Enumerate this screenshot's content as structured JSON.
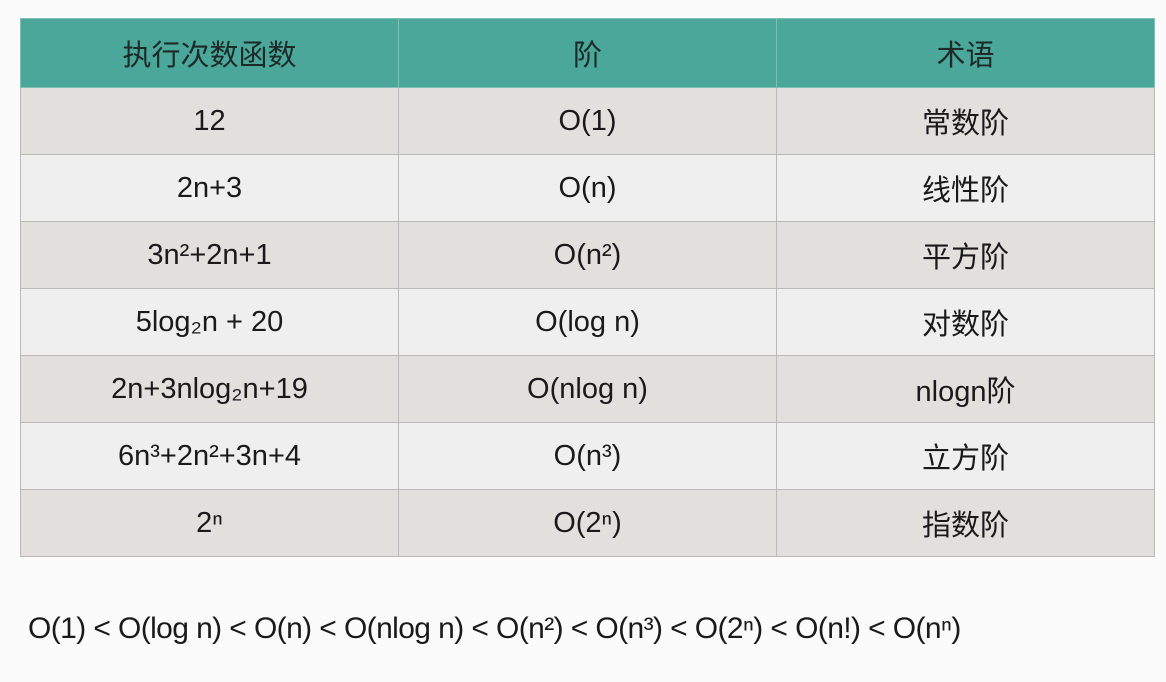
{
  "table": {
    "headers": [
      "执行次数函数",
      "阶",
      "术语"
    ],
    "rows": [
      [
        "12",
        "O(1)",
        "常数阶"
      ],
      [
        "2n+3",
        "O(n)",
        "线性阶"
      ],
      [
        "3n²+2n+1",
        "O(n²)",
        "平方阶"
      ],
      [
        "5log₂n + 20",
        "O(log n)",
        "对数阶"
      ],
      [
        "2n+3nlog₂n+19",
        "O(nlog n)",
        "nlogn阶"
      ],
      [
        "6n³+2n²+3n+4",
        "O(n³)",
        "立方阶"
      ],
      [
        "2ⁿ",
        "O(2ⁿ)",
        "指数阶"
      ]
    ],
    "colors": {
      "header_bg": "#4aa79a",
      "row_odd": "#e1e0dd",
      "row_even": "#efefef"
    }
  },
  "order_text": "O(1) < O(log n) < O(n) < O(nlog n) < O(n²) < O(n³) < O(2ⁿ) < O(n!) < O(nⁿ)"
}
